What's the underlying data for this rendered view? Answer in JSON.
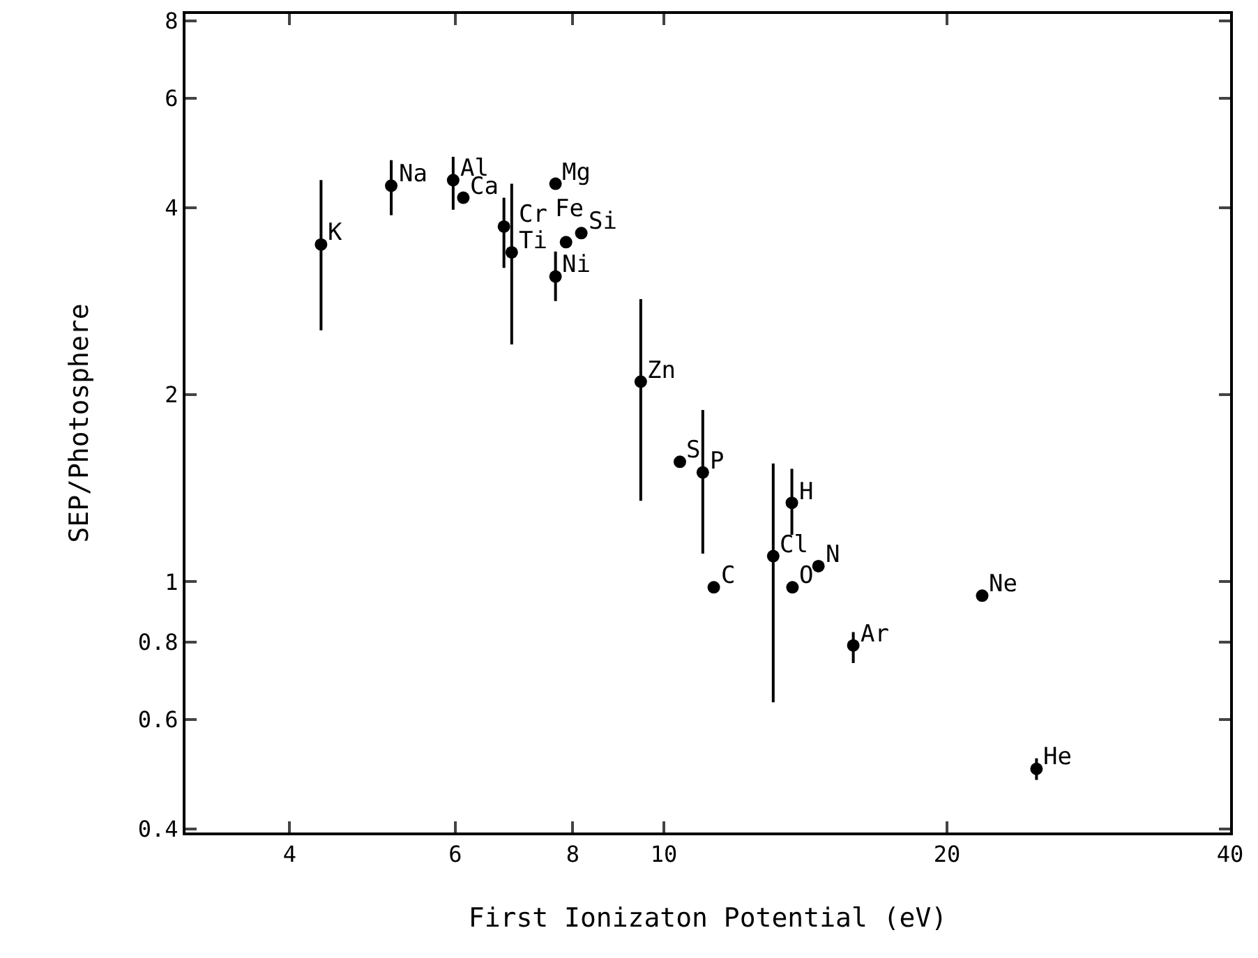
{
  "chart_data": {
    "type": "scatter",
    "xlabel": "First Ionizaton Potential (eV)",
    "ylabel": "SEP/Photosphere",
    "log": "xy",
    "marker": "circle",
    "xlim": [
      3.1,
      40
    ],
    "xticks": [
      4,
      6,
      8,
      10,
      20,
      40
    ],
    "ylim": [
      0.395,
      8.2
    ],
    "yticks": [
      0.4,
      0.6,
      0.8,
      1,
      2,
      4,
      6,
      8
    ],
    "x": [
      4.32,
      5.13,
      5.97,
      6.12,
      6.76,
      6.89,
      7.67,
      7.87,
      8.17,
      7.67,
      9.45,
      10.4,
      11.0,
      13.07,
      13.68,
      11.3,
      13.7,
      14.6,
      15.9,
      21.8,
      24.9
    ],
    "series": [
      {
        "color": "#000000",
        "values": [
          3.49,
          4.34,
          4.43,
          4.15,
          3.73,
          3.39,
          4.37,
          3.52,
          3.64,
          3.1,
          2.1,
          1.56,
          1.5,
          1.1,
          1.34,
          0.98,
          0.98,
          1.06,
          0.79,
          0.95,
          0.5
        ],
        "errors": [
          [
            2.54,
            4.43
          ],
          [
            3.89,
            4.77
          ],
          [
            3.97,
            4.83
          ],
          null,
          [
            3.2,
            4.15
          ],
          [
            2.41,
            4.37
          ],
          null,
          null,
          null,
          [
            2.83,
            3.4
          ],
          [
            1.35,
            2.85
          ],
          null,
          [
            1.11,
            1.89
          ],
          [
            0.64,
            1.55
          ],
          [
            1.19,
            1.52
          ],
          null,
          null,
          null,
          [
            0.74,
            0.83
          ],
          null,
          [
            0.48,
            0.52
          ]
        ]
      }
    ],
    "annotations": [
      {
        "text": "K",
        "x": 4.32,
        "y": 3.49
      },
      {
        "text": "Na",
        "x": 5.13,
        "y": 4.34
      },
      {
        "text": "Al",
        "x": 5.97,
        "y": 4.43
      },
      {
        "text": "Ca",
        "x": 6.12,
        "y": 4.15
      },
      {
        "text": "Cr",
        "x": 6.76,
        "y": 3.73
      },
      {
        "text": "Ti",
        "x": 6.89,
        "y": 3.39
      },
      {
        "text": "Mg",
        "x": 7.67,
        "y": 4.37
      },
      {
        "text": "Fe",
        "x": 7.87,
        "y": 3.52
      },
      {
        "text": "Si",
        "x": 8.17,
        "y": 3.64
      },
      {
        "text": "Ni",
        "x": 7.67,
        "y": 3.1
      },
      {
        "text": "Zn",
        "x": 9.45,
        "y": 2.1
      },
      {
        "text": "S",
        "x": 10.4,
        "y": 1.56
      },
      {
        "text": "P",
        "x": 11.0,
        "y": 1.5
      },
      {
        "text": "Cl",
        "x": 13.07,
        "y": 1.1
      },
      {
        "text": "H",
        "x": 13.68,
        "y": 1.34
      },
      {
        "text": "C",
        "x": 11.3,
        "y": 0.98
      },
      {
        "text": "O",
        "x": 13.7,
        "y": 0.98
      },
      {
        "text": "N",
        "x": 14.6,
        "y": 1.06
      },
      {
        "text": "Ar",
        "x": 15.9,
        "y": 0.79
      },
      {
        "text": "Ne",
        "x": 21.8,
        "y": 0.95
      },
      {
        "text": "He",
        "x": 24.9,
        "y": 0.5
      }
    ]
  }
}
